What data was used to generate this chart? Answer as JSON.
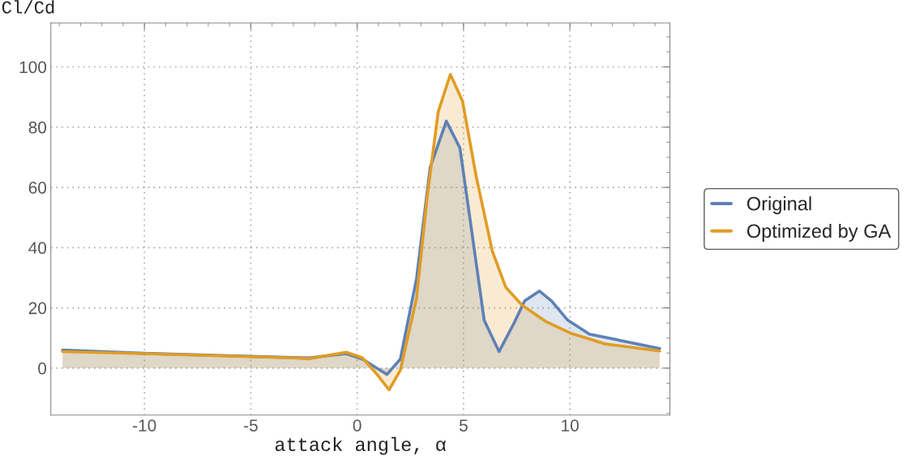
{
  "chart_data": {
    "type": "area",
    "xlabel": "attack angle, α",
    "ylabel": "Cl/Cd",
    "xlim": [
      -14.4,
      14.7
    ],
    "ylim": [
      -15.6,
      114.6
    ],
    "xticks": [
      -10,
      -5,
      0,
      5,
      10
    ],
    "yticks": [
      0,
      20,
      40,
      60,
      80,
      100
    ],
    "grid": true,
    "legend": "right",
    "series": [
      {
        "name": "Original",
        "color": "#5e81b5",
        "x": [
          -13.85,
          -10,
          -5,
          -3,
          -2.29,
          -0.51,
          0.25,
          1.4,
          2.03,
          2.79,
          3.43,
          4.19,
          4.83,
          5.33,
          5.97,
          6.67,
          7.37,
          7.87,
          8.57,
          9.14,
          9.9,
          10.92,
          14.22
        ],
        "values": [
          6.0,
          4.9,
          3.9,
          3.5,
          3.4,
          4.8,
          3.0,
          -2.1,
          3.0,
          29.7,
          66.6,
          82.0,
          73.1,
          48.2,
          15.9,
          5.5,
          14.9,
          22.3,
          25.6,
          22.3,
          15.9,
          11.3,
          6.5
        ]
      },
      {
        "name": "Optimized by GA",
        "color": "#e19c24",
        "x": [
          -13.85,
          -10,
          -5,
          -3,
          -2.29,
          -0.51,
          0.25,
          0.89,
          1.5,
          2.03,
          2.79,
          3.3,
          3.81,
          4.38,
          4.95,
          5.59,
          6.35,
          6.98,
          7.75,
          8.89,
          10,
          11.68,
          14.22
        ],
        "values": [
          5.5,
          4.8,
          3.8,
          3.4,
          3.1,
          5.3,
          3.4,
          -1.7,
          -7.2,
          -0.7,
          23.2,
          57.4,
          85.1,
          97.5,
          88.7,
          63.8,
          38.9,
          26.9,
          20.9,
          15.4,
          11.7,
          8.0,
          5.7
        ]
      }
    ]
  }
}
